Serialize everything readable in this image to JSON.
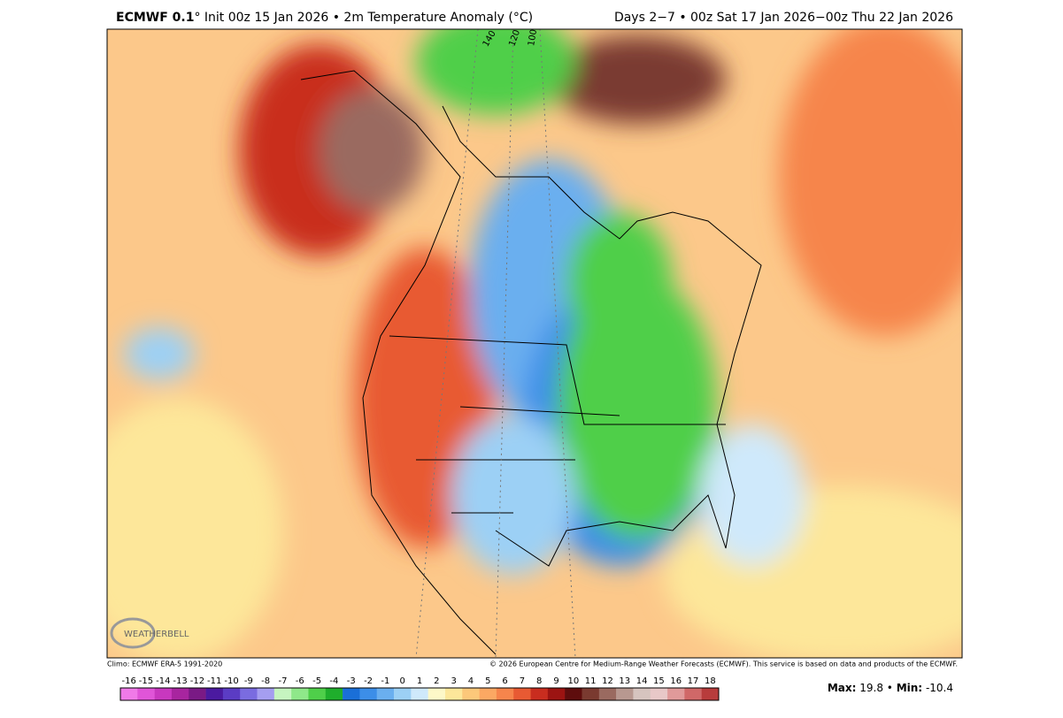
{
  "header": {
    "model": "ECMWF 0.1",
    "title": "° Init 00z 15 Jan 2026 • 2m Temperature Anomaly (°C)",
    "period": "Days 2−7 • 00z Sat 17 Jan 2026−00z Thu 22 Jan 2026"
  },
  "map": {
    "meridians": [
      "140 W",
      "120 W",
      "100 W"
    ],
    "logo": "WEATHERBELL"
  },
  "footer": {
    "climo": "Climo: ECMWF ERA-5 1991-2020",
    "copyright": "© 2026 European Centre for Medium-Range Weather Forecasts (ECMWF). This service is based on data and products of the ECMWF."
  },
  "colorbar": {
    "ticks": [
      -16,
      -15,
      -14,
      -13,
      -12,
      -11,
      -10,
      -9,
      -8,
      -7,
      -6,
      -5,
      -4,
      -3,
      -2,
      -1,
      0,
      1,
      2,
      3,
      4,
      5,
      6,
      7,
      8,
      9,
      10,
      11,
      12,
      13,
      14,
      15,
      16,
      17,
      18
    ],
    "colors": [
      "#f07ae8",
      "#e055d8",
      "#c838bf",
      "#a8259f",
      "#7a1a85",
      "#4b1aa0",
      "#5b3cc4",
      "#7a6ce0",
      "#a59ef0",
      "#c6f5c0",
      "#8fe88a",
      "#4fcf4a",
      "#1fae2c",
      "#1a6fd8",
      "#3c8ee8",
      "#6aafef",
      "#9cd0f5",
      "#cfe9fb",
      "#fdf8c8",
      "#fde79a",
      "#fcc87a",
      "#fba863",
      "#f6854c",
      "#e85a33",
      "#c92d1f",
      "#9c1412",
      "#5e0d0d",
      "#7a3a30",
      "#9a6a60",
      "#b89890",
      "#d6c4bf",
      "#e8c8c8",
      "#e09a9a",
      "#d06868",
      "#b83c3c"
    ]
  },
  "stats": {
    "max_label": "Max:",
    "max": 19.8,
    "separator": "•",
    "min_label": "Min:",
    "min": -10.4
  }
}
